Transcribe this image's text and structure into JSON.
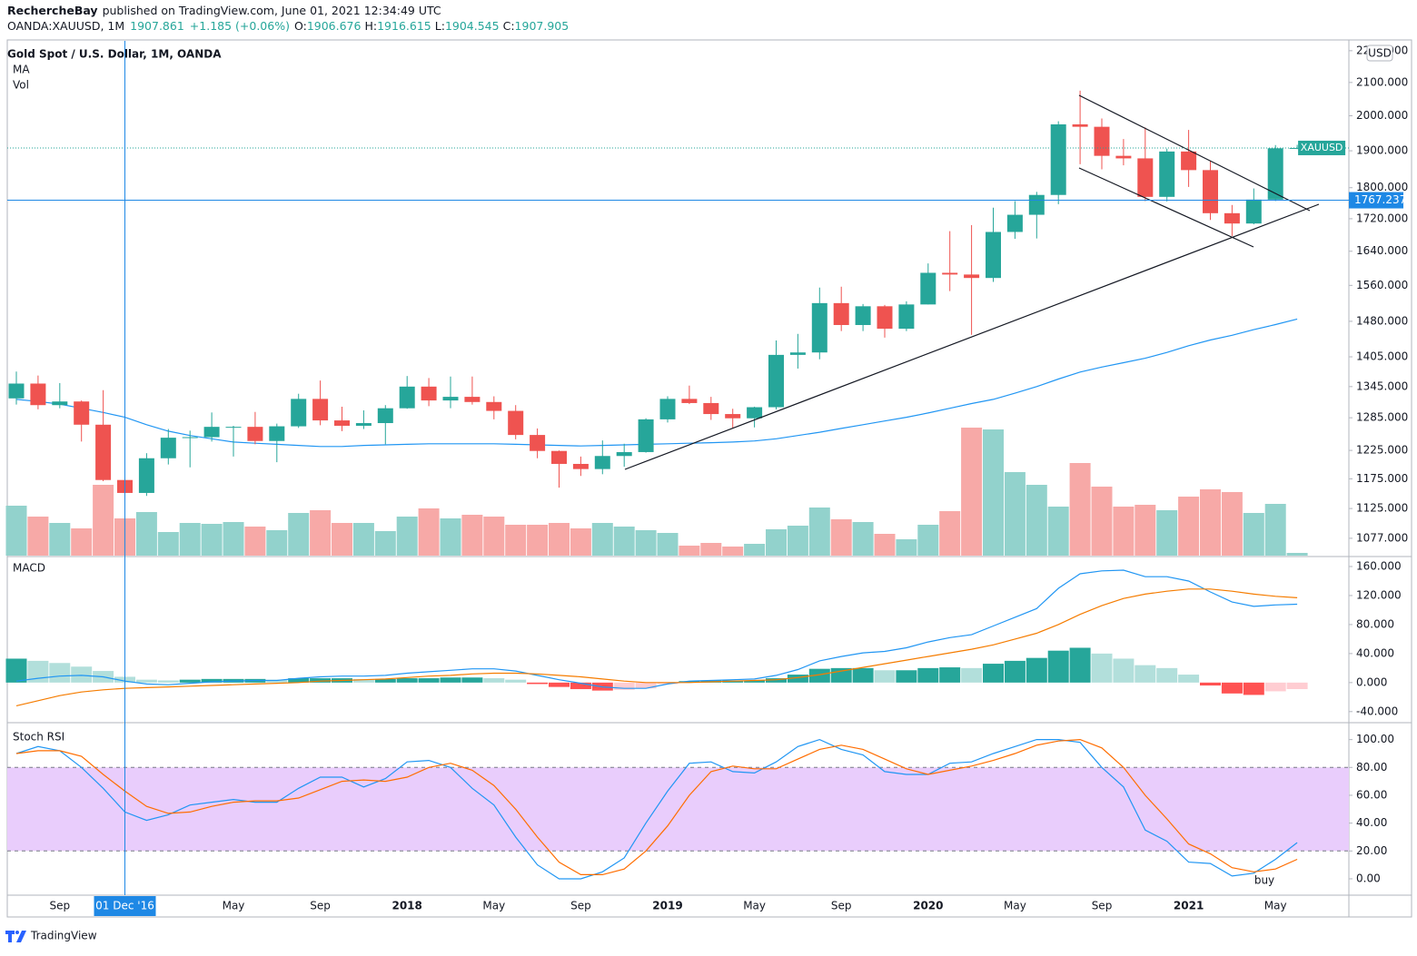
{
  "header": {
    "author": "RechercheBay",
    "published": "published on TradingView.com, June 01, 2021 12:34:49 UTC",
    "symbol": "OANDA:XAUUSD, 1M",
    "last": "1907.861",
    "change": "+1.185 (+0.06%)",
    "ohlc": [
      {
        "label": "O:",
        "value": "1906.676"
      },
      {
        "label": "H:",
        "value": "1916.615"
      },
      {
        "label": "L:",
        "value": "1904.545"
      },
      {
        "label": "C:",
        "value": "1907.905"
      }
    ]
  },
  "legend": {
    "title": "Gold Spot / U.S. Dollar, 1M, OANDA",
    "ma": "MA",
    "vol": "Vol"
  },
  "currency": "USD",
  "brand": "TradingView",
  "annotation": "buy",
  "chart_data": [
    {
      "type": "candlestick",
      "categories": [
        null,
        null,
        "Sep",
        null,
        null,
        null,
        null,
        null,
        null,
        null,
        "May",
        null,
        null,
        null,
        "Sep",
        null,
        null,
        null,
        "2018",
        null,
        null,
        null,
        "May",
        null,
        null,
        null,
        "Sep",
        null,
        null,
        null,
        "2019",
        null,
        null,
        null,
        "May",
        null,
        null,
        null,
        "Sep",
        null,
        null,
        null,
        "2020",
        null,
        null,
        null,
        "May",
        null,
        null,
        null,
        "Sep",
        null,
        null,
        null,
        "2021",
        null,
        null,
        null,
        "May",
        null
      ],
      "open": [
        1322,
        1351,
        1309,
        1316,
        1272,
        1173,
        1151,
        1211,
        1248,
        1249,
        1268,
        1268,
        1242,
        1269,
        1321,
        1280,
        1270,
        1275,
        1303,
        1345,
        1318,
        1325,
        1315,
        1298,
        1253,
        1224,
        1201,
        1192,
        1215,
        1222,
        1282,
        1321,
        1313,
        1292,
        1284,
        1305,
        1409,
        1414,
        1520,
        1472,
        1513,
        1464,
        1517,
        1589,
        1585,
        1577,
        1687,
        1730,
        1781,
        1975,
        1968,
        1886,
        1879,
        1776,
        1898,
        1847,
        1734,
        1708,
        1769,
        1906.676
      ],
      "high": [
        1375,
        1367,
        1352,
        1318,
        1338,
        1180,
        1220,
        1264,
        1261,
        1295,
        1270,
        1296,
        1274,
        1331,
        1357,
        1306,
        1299,
        1309,
        1366,
        1362,
        1365,
        1365,
        1326,
        1309,
        1265,
        1225,
        1214,
        1243,
        1237,
        1284,
        1326,
        1347,
        1325,
        1302,
        1306,
        1439,
        1453,
        1555,
        1557,
        1518,
        1516,
        1524,
        1611,
        1689,
        1704,
        1748,
        1765,
        1789,
        1984,
        2075,
        1992,
        1933,
        1966,
        1906,
        1959,
        1872,
        1755,
        1798,
        1916,
        1916.615
      ],
      "low": [
        1310,
        1301,
        1303,
        1241,
        1171,
        1123,
        1146,
        1200,
        1195,
        1241,
        1214,
        1236,
        1204,
        1266,
        1271,
        1260,
        1264,
        1236,
        1302,
        1307,
        1303,
        1310,
        1282,
        1245,
        1211,
        1160,
        1180,
        1183,
        1196,
        1221,
        1276,
        1311,
        1281,
        1266,
        1267,
        1301,
        1381,
        1400,
        1459,
        1459,
        1445,
        1459,
        1517,
        1547,
        1451,
        1568,
        1670,
        1671,
        1757,
        1863,
        1849,
        1860,
        1765,
        1764,
        1802,
        1717,
        1677,
        1706,
        1765,
        1904.545
      ],
      "close": [
        1351,
        1309,
        1316,
        1272,
        1173,
        1151,
        1211,
        1248,
        1249,
        1268,
        1268,
        1242,
        1269,
        1321,
        1280,
        1270,
        1275,
        1303,
        1345,
        1318,
        1325,
        1315,
        1298,
        1253,
        1224,
        1201,
        1192,
        1215,
        1222,
        1282,
        1321,
        1313,
        1292,
        1284,
        1305,
        1409,
        1414,
        1520,
        1472,
        1513,
        1464,
        1517,
        1589,
        1585,
        1577,
        1687,
        1730,
        1781,
        1975,
        1968,
        1886,
        1879,
        1776,
        1898,
        1847,
        1734,
        1708,
        1769,
        1907,
        1907.905
      ],
      "up_color": "#26a69a",
      "down_color": "#ef5350",
      "ma": {
        "name": "MA",
        "color": "#2196f3",
        "values": [
          1320,
          1316,
          1311,
          1303,
          1295,
          1286,
          1272,
          1260,
          1252,
          1246,
          1240,
          1238,
          1236,
          1234,
          1232,
          1232,
          1234,
          1235,
          1236,
          1237,
          1237,
          1237,
          1237,
          1236,
          1235,
          1234,
          1233,
          1234,
          1235,
          1236,
          1237,
          1238,
          1239,
          1240,
          1242,
          1246,
          1252,
          1258,
          1265,
          1272,
          1279,
          1286,
          1294,
          1303,
          1312,
          1320,
          1332,
          1345,
          1360,
          1374,
          1384,
          1393,
          1402,
          1414,
          1428,
          1440,
          1450,
          1462,
          1473,
          1485
        ]
      },
      "volume": {
        "name": "Vol",
        "up_color": "#92d2cc",
        "down_color": "#f7a9a7",
        "vlim": [
          0,
          150
        ],
        "values": [
          55,
          43,
          36,
          30,
          78,
          41,
          48,
          26,
          36,
          35,
          37,
          32,
          28,
          47,
          50,
          36,
          36,
          27,
          43,
          52,
          41,
          45,
          43,
          34,
          34,
          36,
          30,
          36,
          32,
          28,
          25,
          11,
          14,
          10,
          13,
          29,
          33,
          53,
          40,
          37,
          24,
          18,
          34,
          49,
          141,
          139,
          92,
          78,
          54,
          102,
          76,
          54,
          56,
          50,
          65,
          73,
          70,
          47,
          57,
          3
        ]
      },
      "log": true,
      "ylim": [
        1050,
        2232
      ],
      "yticks": [
        {
          "value": 2200,
          "label": "2200.000"
        },
        {
          "value": 2100,
          "label": "2100.000"
        },
        {
          "value": 2000,
          "label": "2000.000"
        },
        {
          "value": 1900,
          "label": "1900.000"
        },
        {
          "value": 1800,
          "label": "1800.000"
        },
        {
          "value": 1720,
          "label": "1720.000"
        },
        {
          "value": 1640,
          "label": "1640.000"
        },
        {
          "value": 1560,
          "label": "1560.000"
        },
        {
          "value": 1480,
          "label": "1480.000"
        },
        {
          "value": 1405,
          "label": "1405.000"
        },
        {
          "value": 1345,
          "label": "1345.000"
        },
        {
          "value": 1285,
          "label": "1285.000"
        },
        {
          "value": 1225,
          "label": "1225.000"
        },
        {
          "value": 1175,
          "label": "1175.000"
        },
        {
          "value": 1125,
          "label": "1125.000"
        },
        {
          "value": 1077,
          "label": "1077.000"
        }
      ],
      "price_tag": "XAUUSD",
      "crosshair": {
        "x": 5,
        "x_label": "01 Dec '16",
        "y": 1767.237,
        "y_label": "1767.237",
        "color": "#1e88e5"
      }
    },
    {
      "type": "macd",
      "title": "MACD",
      "series": [
        {
          "name": "MACD",
          "color": "#2196f3",
          "values": [
            2,
            6,
            9,
            10,
            8,
            2,
            -2,
            -3,
            -1,
            1,
            2,
            3,
            3,
            6,
            8,
            9,
            9,
            10,
            13,
            15,
            17,
            19,
            19,
            16,
            10,
            4,
            -1,
            -6,
            -8,
            -8,
            -2,
            2,
            3,
            4,
            5,
            10,
            18,
            30,
            36,
            41,
            43,
            48,
            56,
            62,
            66,
            78,
            90,
            102,
            130,
            150,
            154,
            155,
            146,
            146,
            140,
            125,
            111,
            105,
            107,
            108
          ]
        },
        {
          "name": "Signal",
          "color": "#f57c00",
          "values": [
            -32,
            -25,
            -18,
            -13,
            -10,
            -8,
            -7,
            -6,
            -5,
            -4,
            -3,
            -2,
            -1,
            0,
            2,
            3,
            4,
            5,
            7,
            9,
            10,
            12,
            13,
            13,
            12,
            10,
            8,
            5,
            2,
            0,
            0,
            0,
            1,
            2,
            3,
            4,
            7,
            11,
            16,
            21,
            26,
            31,
            36,
            41,
            46,
            52,
            60,
            68,
            80,
            94,
            106,
            116,
            122,
            126,
            129,
            129,
            126,
            122,
            119,
            117
          ]
        }
      ],
      "histogram": [
        33,
        30,
        27,
        22,
        16,
        8,
        4,
        3,
        4,
        5,
        5,
        5,
        4,
        6,
        6,
        6,
        5,
        5,
        6,
        6,
        7,
        7,
        6,
        4,
        -2,
        -6,
        -9,
        -11,
        -10,
        -8,
        -2,
        2,
        3,
        3,
        3,
        6,
        11,
        19,
        20,
        20,
        17,
        17,
        20,
        21,
        20,
        26,
        30,
        34,
        44,
        48,
        40,
        33,
        24,
        20,
        11,
        -4,
        -15,
        -17,
        -12,
        -9
      ],
      "hist_colors": [
        "#26a69a",
        "#b2dfdb",
        "#ff5252",
        "#ffcdd2"
      ],
      "ylim": [
        -54,
        172.5
      ],
      "yticks": [
        {
          "value": 160,
          "label": "160.000"
        },
        {
          "value": 120,
          "label": "120.000"
        },
        {
          "value": 80,
          "label": "80.000"
        },
        {
          "value": 40,
          "label": "40.000"
        },
        {
          "value": 0,
          "label": "0.000"
        },
        {
          "value": -40,
          "label": "-40.000"
        }
      ]
    },
    {
      "type": "stoch",
      "title": "Stoch RSI",
      "series": [
        {
          "name": "K",
          "color": "#2196f3",
          "values": [
            90,
            95,
            92,
            80,
            65,
            48,
            42,
            46,
            53,
            55,
            57,
            55,
            55,
            65,
            73,
            73,
            66,
            72,
            84,
            85,
            80,
            65,
            53,
            30,
            10,
            0,
            0,
            5,
            15,
            40,
            63,
            83,
            84,
            77,
            76,
            84,
            95,
            100,
            93,
            89,
            77,
            75,
            75,
            83,
            84,
            90,
            95,
            100,
            100,
            98,
            80,
            66,
            35,
            27,
            12,
            11,
            2,
            4,
            14,
            26
          ]
        },
        {
          "name": "D",
          "color": "#ff6d00",
          "values": [
            90,
            92,
            92,
            88,
            75,
            63,
            52,
            47,
            48,
            52,
            55,
            56,
            56,
            58,
            64,
            70,
            71,
            70,
            73,
            80,
            83,
            78,
            67,
            50,
            30,
            12,
            3,
            3,
            7,
            20,
            38,
            60,
            77,
            81,
            79,
            79,
            86,
            93,
            96,
            93,
            86,
            79,
            75,
            78,
            81,
            85,
            90,
            96,
            99,
            100,
            94,
            80,
            60,
            43,
            25,
            18,
            8,
            5,
            7,
            14
          ]
        }
      ],
      "bands": [
        20,
        80
      ],
      "band_color": "#e9cdfc",
      "ylim": [
        -11.1,
        111.5
      ],
      "yticks": [
        {
          "value": 100,
          "label": "100.00"
        },
        {
          "value": 80,
          "label": "80.00"
        },
        {
          "value": 60,
          "label": "60.00"
        },
        {
          "value": 40,
          "label": "40.00"
        },
        {
          "value": 20,
          "label": "20.00"
        },
        {
          "value": 0,
          "label": "0.00"
        }
      ]
    }
  ]
}
